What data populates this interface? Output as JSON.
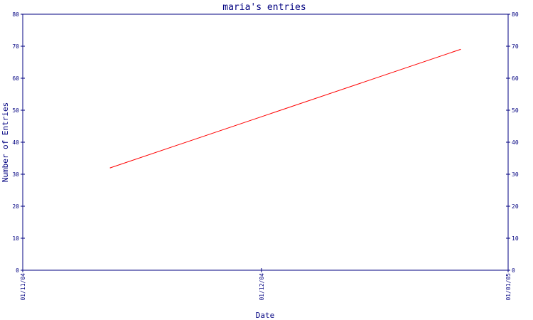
{
  "chart_data": {
    "type": "line",
    "title": "maria's entries",
    "xlabel": "Date",
    "ylabel": "Number of Entries",
    "x_ticks": [
      "01/11/04",
      "01/12/04",
      "01/01/05"
    ],
    "ylim": [
      0,
      80
    ],
    "y_ticks": [
      0,
      10,
      20,
      30,
      40,
      50,
      60,
      70,
      80
    ],
    "y_ticks_right": true,
    "grid": false,
    "series": [
      {
        "color": "#ff0000",
        "points": [
          {
            "x": "2004-11-12",
            "y": 32
          },
          {
            "x": "2004-12-26",
            "y": 69
          }
        ]
      }
    ]
  },
  "colors": {
    "axis": "#000080",
    "text": "#000080",
    "line": "#ff0000"
  }
}
